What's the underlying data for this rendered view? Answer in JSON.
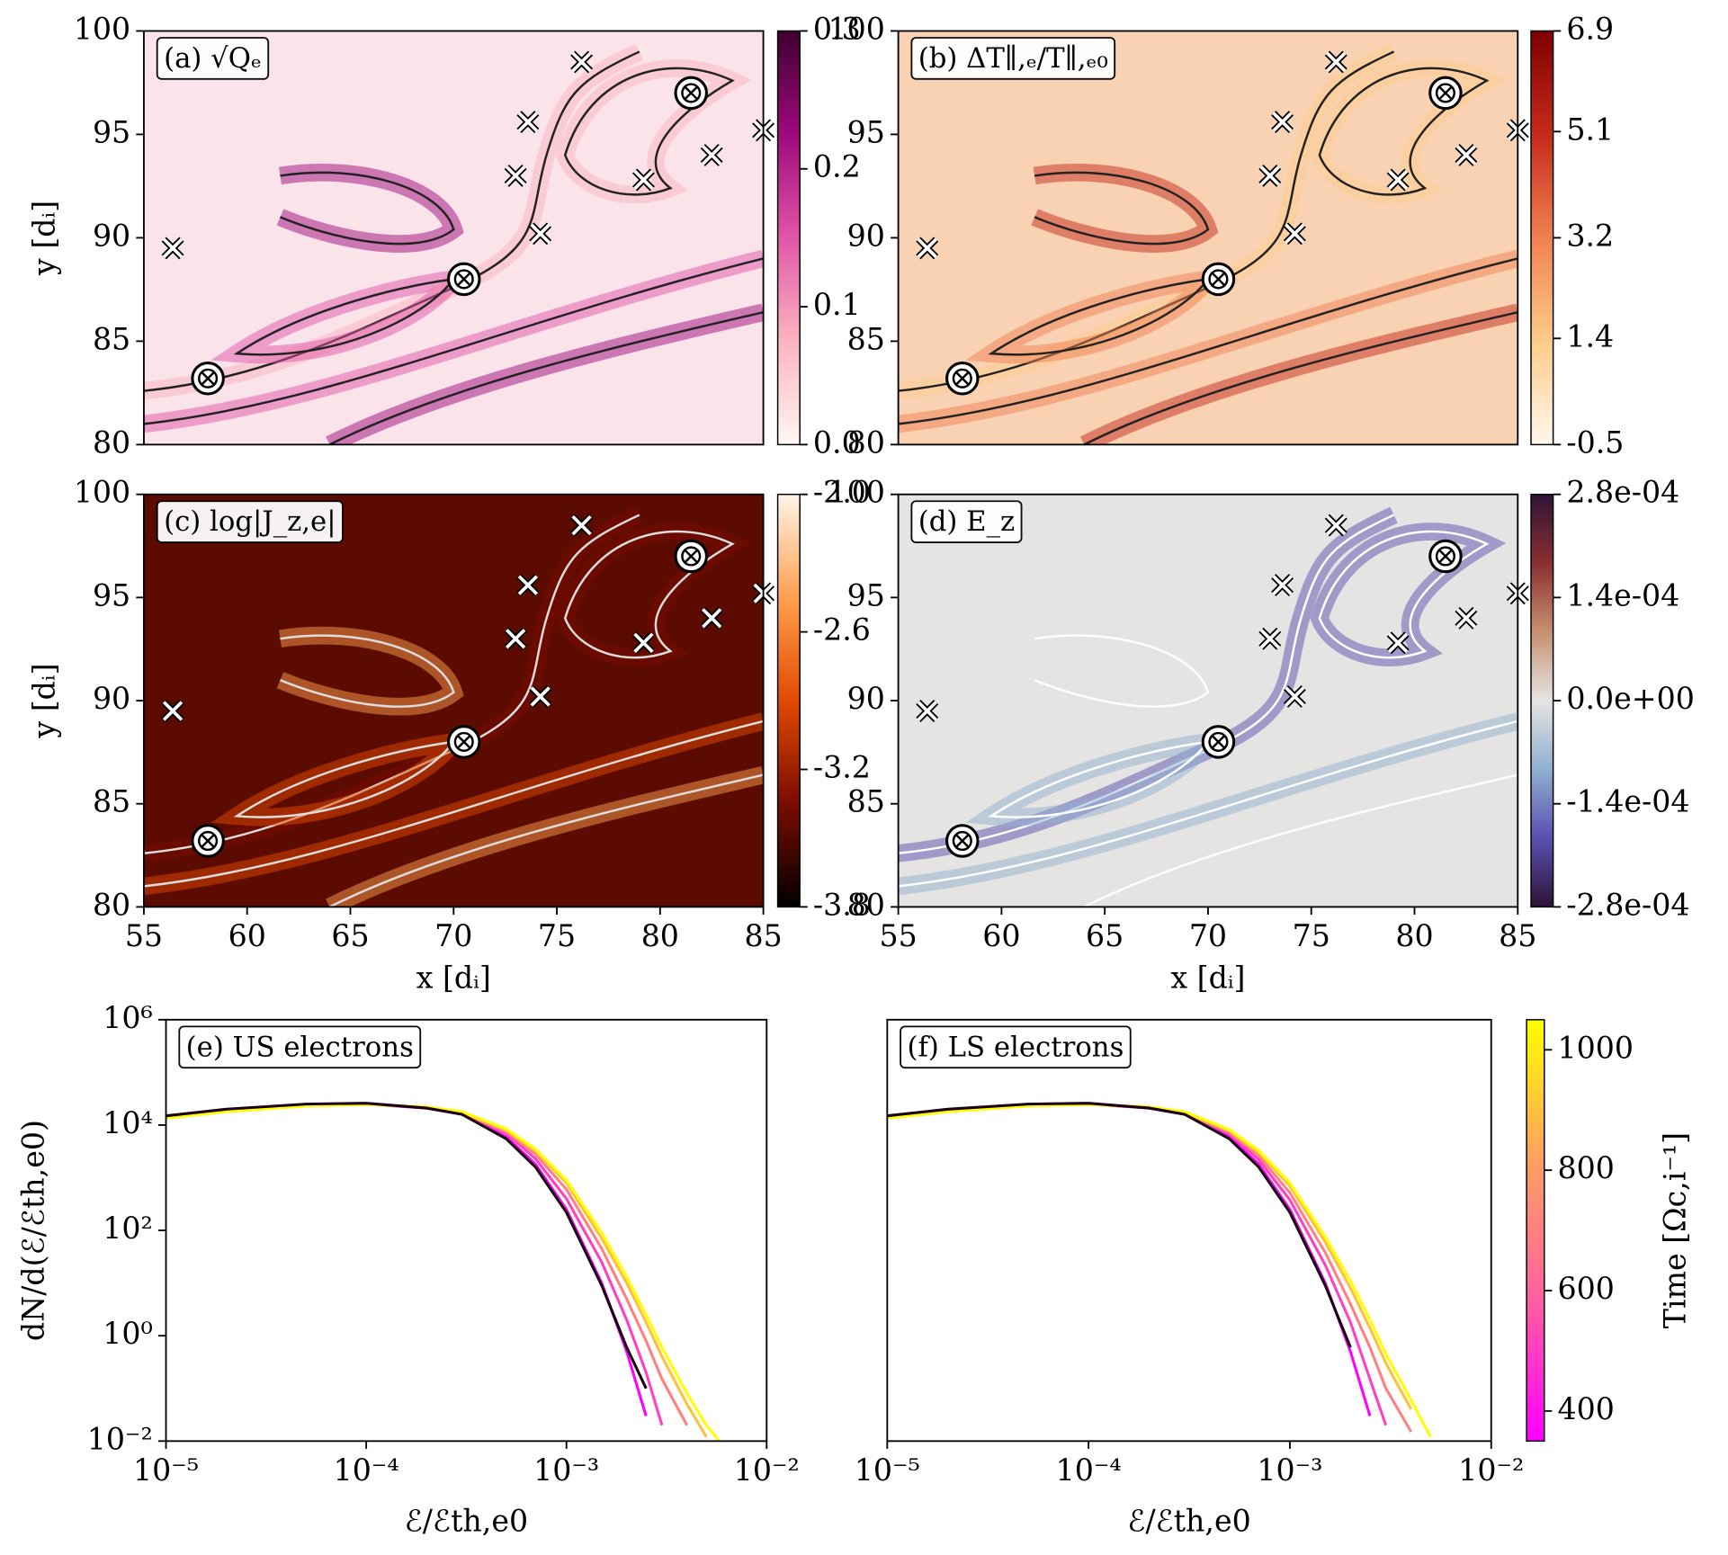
{
  "chart_data": [
    {
      "type": "heatmap",
      "title": "(a) √Qₑ",
      "ylabel": "y [dᵢ]",
      "xlim": [
        55,
        85
      ],
      "ylim": [
        80,
        100
      ],
      "yticks": [
        80,
        85,
        90,
        95,
        100
      ],
      "x_points": [
        [
          56.4,
          89.5
        ],
        [
          73,
          93
        ],
        [
          73.6,
          95.6
        ],
        [
          74.2,
          90.2
        ],
        [
          76.2,
          98.5
        ],
        [
          79.2,
          92.8
        ],
        [
          82.5,
          94
        ],
        [
          85,
          95.2
        ]
      ],
      "o_points": [
        [
          58.1,
          83.2
        ],
        [
          70.5,
          88
        ],
        [
          81.5,
          97
        ]
      ],
      "colorbar": {
        "lim": [
          0,
          0.3
        ],
        "ticks": [
          {
            "value": 0,
            "label": "0.0"
          },
          0.1,
          0.2,
          0.3
        ],
        "colors": [
          "#fff7f3",
          "#fbb4c0",
          "#e056a8",
          "#9e0a7c",
          "#3f0030"
        ]
      }
    },
    {
      "type": "heatmap",
      "title": "(b) ΔT∥,ₑ/T∥,ₑ₀",
      "xlim": [
        55,
        85
      ],
      "ylim": [
        80,
        100
      ],
      "yticks": [
        80,
        85,
        90,
        95,
        100
      ],
      "x_points": [
        [
          56.4,
          89.5
        ],
        [
          73,
          93
        ],
        [
          73.6,
          95.6
        ],
        [
          74.2,
          90.2
        ],
        [
          76.2,
          98.5
        ],
        [
          79.2,
          92.8
        ],
        [
          82.5,
          94
        ],
        [
          85,
          95.2
        ]
      ],
      "o_points": [
        [
          58.1,
          83.2
        ],
        [
          70.5,
          88
        ],
        [
          81.5,
          97
        ]
      ],
      "colorbar": {
        "lim": [
          -0.5,
          6.9
        ],
        "ticks": [
          -0.5,
          1.4,
          3.2,
          5.1,
          6.9
        ],
        "colors": [
          "#fff7ec",
          "#fdcc8a",
          "#f08050",
          "#c62a1a",
          "#7f0000"
        ]
      }
    },
    {
      "type": "heatmap",
      "title": "(c) log|J_z,e|",
      "xlabel": "x [dᵢ]",
      "ylabel": "y [dᵢ]",
      "xlim": [
        55,
        85
      ],
      "ylim": [
        80,
        100
      ],
      "xticks": [
        55,
        60,
        65,
        70,
        75,
        80,
        85
      ],
      "yticks": [
        80,
        85,
        90,
        95,
        100
      ],
      "x_points": [
        [
          56.4,
          89.5
        ],
        [
          73,
          93
        ],
        [
          73.6,
          95.6
        ],
        [
          74.2,
          90.2
        ],
        [
          76.2,
          98.5
        ],
        [
          79.2,
          92.8
        ],
        [
          82.5,
          94
        ],
        [
          85,
          95.2
        ]
      ],
      "o_points": [
        [
          58.1,
          83.2
        ],
        [
          70.5,
          88
        ],
        [
          81.5,
          97
        ]
      ],
      "colorbar": {
        "lim": [
          -3.8,
          -2.0
        ],
        "ticks": [
          -3.8,
          -3.2,
          -2.6,
          {
            "value": -2.0,
            "label": "-2.0"
          }
        ],
        "colors": [
          "#000000",
          "#7a0c00",
          "#e24a00",
          "#ffa050",
          "#fff4e8"
        ]
      }
    },
    {
      "type": "heatmap",
      "title": "(d) E_z",
      "xlabel": "x [dᵢ]",
      "xlim": [
        55,
        85
      ],
      "ylim": [
        80,
        100
      ],
      "xticks": [
        55,
        60,
        65,
        70,
        75,
        80,
        85
      ],
      "yticks": [
        80,
        85,
        90,
        95,
        100
      ],
      "x_points": [
        [
          56.4,
          89.5
        ],
        [
          73,
          93
        ],
        [
          73.6,
          95.6
        ],
        [
          74.2,
          90.2
        ],
        [
          76.2,
          98.5
        ],
        [
          79.2,
          92.8
        ],
        [
          82.5,
          94
        ],
        [
          85,
          95.2
        ]
      ],
      "o_points": [
        [
          58.1,
          83.2
        ],
        [
          70.5,
          88
        ],
        [
          81.5,
          97
        ]
      ],
      "colorbar": {
        "lim": [
          -0.00028,
          0.00028
        ],
        "ticks": [
          {
            "value": -0.00028,
            "label": "-2.8e-04"
          },
          {
            "value": -0.00014,
            "label": "-1.4e-04"
          },
          {
            "value": 0,
            "label": "0.0e+00"
          },
          {
            "value": 0.00014,
            "label": "1.4e-04"
          },
          {
            "value": 0.00028,
            "label": "2.8e-04"
          }
        ],
        "colors": [
          "#2f1437",
          "#5a4fb0",
          "#8fb0d0",
          "#e6e4e2",
          "#c79070",
          "#8a3030",
          "#2f1437"
        ]
      }
    },
    {
      "type": "line",
      "title": "(e) US electrons",
      "ylabel": "dN/d(ℰ/ℰth,e0)",
      "xlabel": "ℰ/ℰth,e0",
      "xscale": "log",
      "yscale": "log",
      "xlim": [
        1e-05,
        0.01
      ],
      "ylim": [
        0.01,
        1000000
      ],
      "xticks": [
        {
          "value": 1e-05,
          "label": "10⁻⁵"
        },
        {
          "value": 0.0001,
          "label": "10⁻⁴"
        },
        {
          "value": 0.001,
          "label": "10⁻³"
        },
        {
          "value": 0.01,
          "label": "10⁻²"
        }
      ],
      "yticks": [
        {
          "value": 0.01,
          "label": "10⁻²"
        },
        {
          "value": 1,
          "label": "10⁰"
        },
        {
          "value": 100,
          "label": "10²"
        },
        {
          "value": 10000,
          "label": "10⁴"
        },
        {
          "value": 1000000,
          "label": "10⁶"
        }
      ],
      "x": [
        1e-05,
        2e-05,
        5e-05,
        0.0001,
        0.0002,
        0.0003,
        0.0005,
        0.0007,
        0.001,
        0.0015,
        0.002,
        0.0025,
        0.003,
        0.004,
        0.005,
        0.0058
      ],
      "series": [
        {
          "color": "#ff00ff",
          "values": [
            14000,
            19000,
            24000,
            25000,
            21000,
            16000,
            6000,
            1800,
            250,
            10,
            0.5,
            0.03,
            null,
            null,
            null,
            null
          ]
        },
        {
          "color": "#ff40c0",
          "values": [
            14000,
            19000,
            24000,
            25000,
            21000,
            16500,
            7000,
            2300,
            400,
            25,
            2,
            0.2,
            0.02,
            null,
            null,
            null
          ]
        },
        {
          "color": "#ff8080",
          "values": [
            14000,
            18500,
            23500,
            25000,
            21500,
            17000,
            7500,
            2800,
            600,
            45,
            5,
            0.8,
            0.15,
            0.02,
            null,
            null
          ]
        },
        {
          "color": "#ffc040",
          "values": [
            13500,
            18000,
            23000,
            24500,
            22000,
            17500,
            8000,
            3200,
            800,
            70,
            10,
            1.8,
            0.4,
            0.05,
            0.012,
            null
          ]
        },
        {
          "color": "#ffff00",
          "values": [
            13500,
            18000,
            23000,
            24500,
            22000,
            18000,
            8500,
            3500,
            900,
            90,
            13,
            2.5,
            0.6,
            0.08,
            0.02,
            0.01
          ]
        },
        {
          "color": "#1a0010",
          "values": [
            15000,
            20000,
            25000,
            26000,
            21000,
            16000,
            5500,
            1600,
            220,
            9,
            0.6,
            0.1,
            null,
            null,
            null,
            null
          ]
        }
      ]
    },
    {
      "type": "line",
      "title": "(f) LS electrons",
      "xlabel": "ℰ/ℰth,e0",
      "xscale": "log",
      "yscale": "log",
      "xlim": [
        1e-05,
        0.01
      ],
      "ylim": [
        0.01,
        1000000
      ],
      "xticks": [
        {
          "value": 1e-05,
          "label": "10⁻⁵"
        },
        {
          "value": 0.0001,
          "label": "10⁻⁴"
        },
        {
          "value": 0.001,
          "label": "10⁻³"
        },
        {
          "value": 0.01,
          "label": "10⁻²"
        }
      ],
      "x": [
        1e-05,
        2e-05,
        5e-05,
        0.0001,
        0.0002,
        0.0003,
        0.0005,
        0.0007,
        0.001,
        0.0015,
        0.002,
        0.0025,
        0.003,
        0.004,
        0.005,
        0.0058
      ],
      "series": [
        {
          "color": "#ff00ff",
          "values": [
            14000,
            19000,
            24000,
            25000,
            21000,
            16000,
            6000,
            1800,
            250,
            10,
            0.5,
            0.03,
            null,
            null,
            null,
            null
          ]
        },
        {
          "color": "#ff40c0",
          "values": [
            14000,
            19000,
            24000,
            25000,
            21000,
            16500,
            6800,
            2200,
            380,
            22,
            1.8,
            0.15,
            0.02,
            null,
            null,
            null
          ]
        },
        {
          "color": "#ff8080",
          "values": [
            14000,
            18500,
            23500,
            25000,
            21500,
            17000,
            7300,
            2600,
            520,
            38,
            4,
            0.6,
            0.1,
            0.015,
            null,
            null
          ]
        },
        {
          "color": "#ffc040",
          "values": [
            13500,
            18000,
            23000,
            24500,
            22000,
            17500,
            7800,
            3000,
            700,
            60,
            8,
            1.4,
            0.3,
            0.04,
            null,
            null
          ]
        },
        {
          "color": "#ffff00",
          "values": [
            13500,
            18000,
            23000,
            24500,
            22000,
            18000,
            8200,
            3300,
            800,
            75,
            11,
            2,
            0.45,
            0.06,
            0.012,
            null
          ]
        },
        {
          "color": "#1a0010",
          "values": [
            15000,
            20000,
            25000,
            26000,
            21000,
            16000,
            5500,
            1600,
            220,
            9,
            0.6,
            null,
            null,
            null,
            null,
            null
          ]
        }
      ],
      "colorbar": {
        "label": "Time [Ωc,i⁻¹]",
        "lim": [
          350,
          1050
        ],
        "ticks": [
          400,
          600,
          800,
          1000
        ],
        "colors": [
          "#ff00ff",
          "#ff60a0",
          "#ffa060",
          "#ffff00"
        ]
      }
    }
  ]
}
